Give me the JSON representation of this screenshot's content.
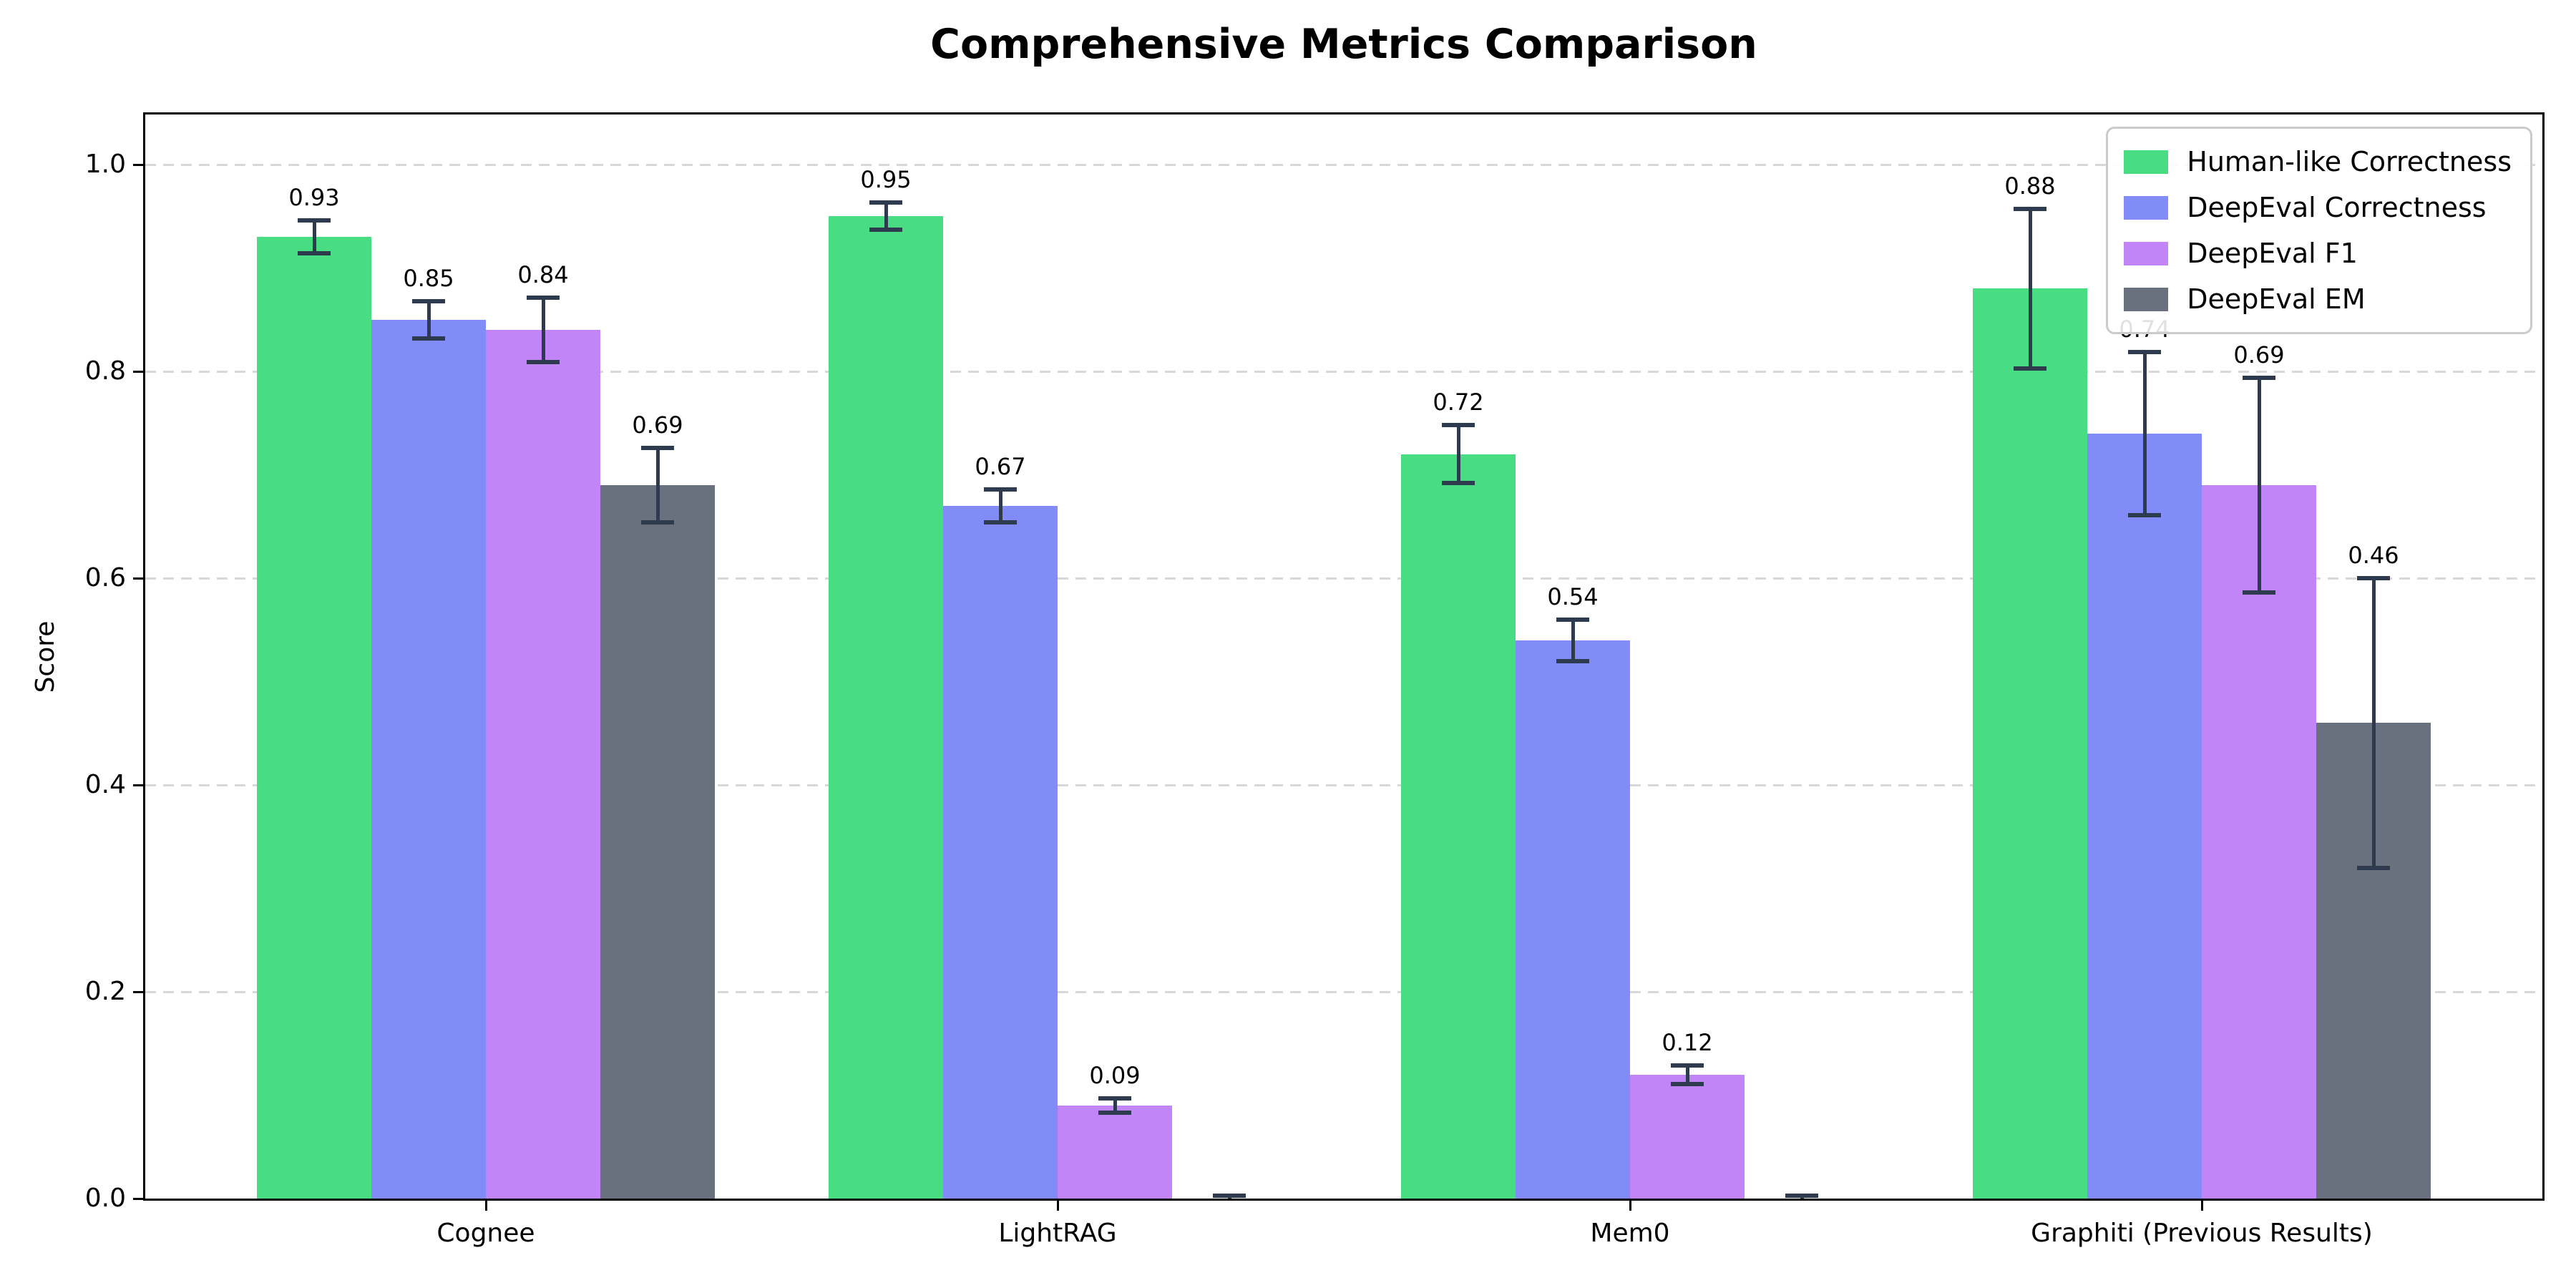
{
  "title": "Comprehensive Metrics Comparison",
  "chart_data": {
    "type": "bar",
    "title": "Comprehensive Metrics Comparison",
    "xlabel": "",
    "ylabel": "Score",
    "ylim": [
      0,
      1.05
    ],
    "yticks": [
      "0.0",
      "0.2",
      "0.4",
      "0.6",
      "0.8",
      "1.0"
    ],
    "grid": "horizontal-dashed",
    "legend_position": "upper right",
    "categories": [
      "Cognee",
      "LightRAG",
      "Mem0",
      "Graphiti (Previous Results)"
    ],
    "series": [
      {
        "name": "Human-like Correctness",
        "color": "#48dd83",
        "values": [
          0.93,
          0.95,
          0.72,
          0.88
        ],
        "errors": [
          0.016,
          0.013,
          0.028,
          0.077
        ],
        "labels": [
          "0.93",
          "0.95",
          "0.72",
          "0.88"
        ]
      },
      {
        "name": "DeepEval Correctness",
        "color": "#818cf8",
        "values": [
          0.85,
          0.67,
          0.54,
          0.74
        ],
        "errors": [
          0.018,
          0.016,
          0.02,
          0.079
        ],
        "labels": [
          "0.85",
          "0.67",
          "0.54",
          "0.74"
        ]
      },
      {
        "name": "DeepEval F1",
        "color": "#c285f7",
        "values": [
          0.84,
          0.09,
          0.12,
          0.69
        ],
        "errors": [
          0.031,
          0.007,
          0.009,
          0.104
        ],
        "labels": [
          "0.84",
          "0.09",
          "0.12",
          "0.69"
        ]
      },
      {
        "name": "DeepEval EM",
        "color": "#69717f",
        "values": [
          0.69,
          0.0,
          0.0,
          0.46
        ],
        "errors": [
          0.036,
          0.003,
          0.003,
          0.14
        ],
        "labels": [
          "0.69",
          "",
          "",
          "0.46"
        ]
      }
    ],
    "colors": {
      "errorbar": "#2e3a4d",
      "grid": "#d8d8d8",
      "spine": "#000000",
      "text": "#000000",
      "legend_border": "#cbcbcb",
      "background": "#ffffff"
    }
  }
}
